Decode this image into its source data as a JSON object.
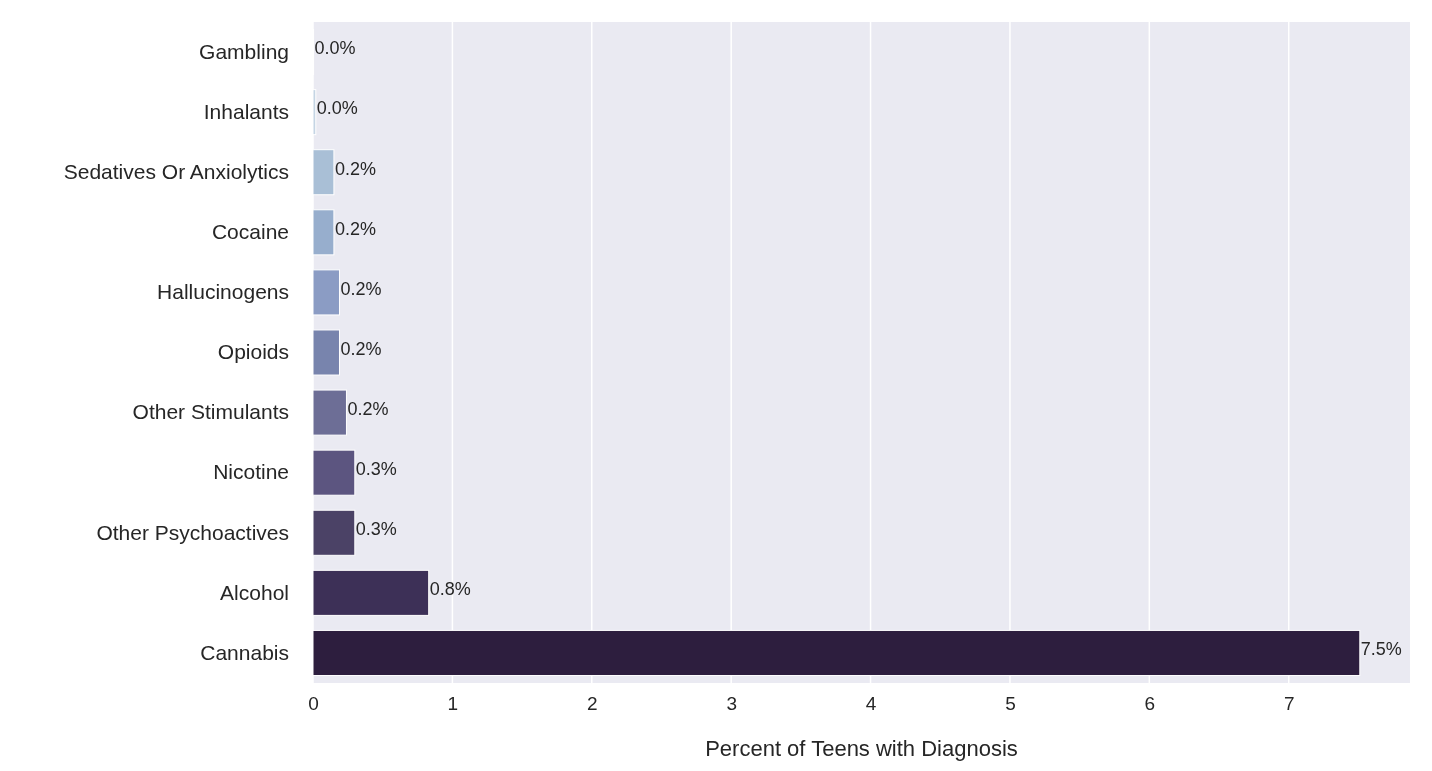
{
  "chart_data": {
    "type": "bar",
    "orientation": "horizontal",
    "xlabel": "Percent of Teens with Diagnosis",
    "categories": [
      "Gambling",
      "Inhalants",
      "Sedatives Or Anxiolytics",
      "Cocaine",
      "Hallucinogens",
      "Opioids",
      "Other Stimulants",
      "Nicotine",
      "Other Psychoactives",
      "Alcohol",
      "Cannabis"
    ],
    "values": [
      0.004,
      0.02,
      0.15,
      0.15,
      0.19,
      0.19,
      0.24,
      0.3,
      0.3,
      0.83,
      7.51
    ],
    "colors": [
      "#dde7ef",
      "#c5d5e4",
      "#a9bfd6",
      "#97aecd",
      "#8b9cc4",
      "#7884ad",
      "#6d6e96",
      "#5c5580",
      "#4b4266",
      "#3d3057",
      "#2d1e3e"
    ],
    "value_labels": [
      "0.0%",
      "0.0%",
      "0.2%",
      "0.2%",
      "0.2%",
      "0.2%",
      "0.2%",
      "0.3%",
      "0.3%",
      "0.8%",
      "7.5%"
    ],
    "xlim": [
      0,
      7.87
    ],
    "xticks": [
      0,
      1,
      2,
      3,
      4,
      5,
      6,
      7
    ],
    "grid": "x"
  }
}
